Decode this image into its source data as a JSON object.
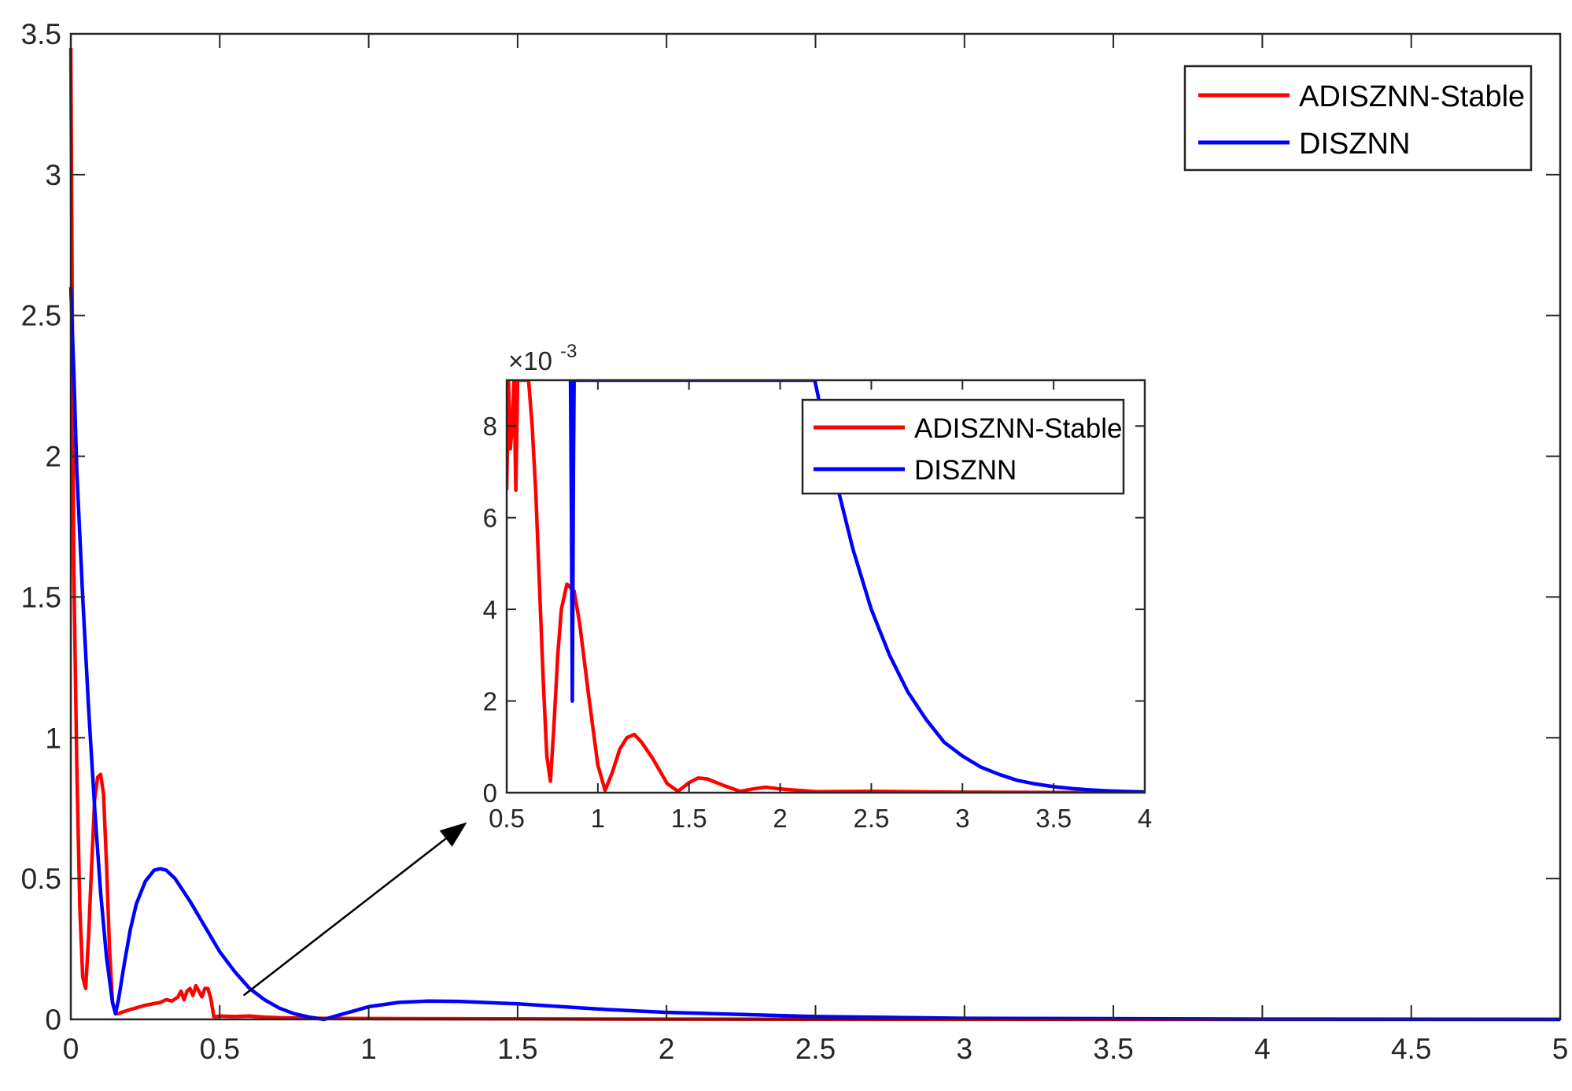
{
  "chart_data": [
    {
      "id": "main",
      "type": "line",
      "title": "",
      "xlabel": "",
      "ylabel": "",
      "xlim": [
        0,
        5
      ],
      "ylim": [
        0,
        3.5
      ],
      "x_ticks": [
        0,
        0.5,
        1,
        1.5,
        2,
        2.5,
        3,
        3.5,
        4,
        4.5,
        5
      ],
      "x_tick_labels": [
        "0",
        "0.5",
        "1",
        "1.5",
        "2",
        "2.5",
        "3",
        "3.5",
        "4",
        "4.5",
        "5"
      ],
      "y_ticks": [
        0,
        0.5,
        1,
        1.5,
        2,
        2.5,
        3,
        3.5
      ],
      "y_tick_labels": [
        "0",
        "0.5",
        "1",
        "1.5",
        "2",
        "2.5",
        "3",
        "3.5"
      ],
      "grid": false,
      "legend_position": "top-right",
      "series": [
        {
          "name": "ADISZNN-Stable",
          "color": "#ff0000",
          "x": [
            0,
            0.005,
            0.01,
            0.02,
            0.03,
            0.04,
            0.05,
            0.06,
            0.07,
            0.08,
            0.09,
            0.1,
            0.11,
            0.12,
            0.13,
            0.14,
            0.15,
            0.16,
            0.17,
            0.2,
            0.25,
            0.3,
            0.32,
            0.34,
            0.36,
            0.37,
            0.38,
            0.39,
            0.4,
            0.41,
            0.42,
            0.43,
            0.44,
            0.45,
            0.46,
            0.47,
            0.48,
            0.49,
            0.5,
            0.55,
            0.6,
            0.65,
            0.7,
            0.8,
            1.0,
            1.5,
            2.0,
            2.5,
            3.0,
            4.0,
            5.0
          ],
          "y": [
            3.45,
            2.5,
            1.6,
            0.9,
            0.4,
            0.15,
            0.11,
            0.3,
            0.55,
            0.78,
            0.86,
            0.87,
            0.8,
            0.55,
            0.25,
            0.06,
            0.02,
            0.02,
            0.025,
            0.035,
            0.05,
            0.06,
            0.07,
            0.065,
            0.08,
            0.1,
            0.07,
            0.1,
            0.11,
            0.085,
            0.12,
            0.1,
            0.08,
            0.11,
            0.11,
            0.075,
            0.01,
            0.01,
            0.012,
            0.01,
            0.012,
            0.008,
            0.006,
            0.004,
            0.003,
            0.002,
            0.001,
            0.0005,
            0.0002,
            0.0001,
            0.0
          ]
        },
        {
          "name": "DISZNN",
          "color": "#0000ff",
          "x": [
            0,
            0.01,
            0.02,
            0.04,
            0.06,
            0.08,
            0.1,
            0.12,
            0.14,
            0.15,
            0.16,
            0.18,
            0.2,
            0.22,
            0.25,
            0.28,
            0.3,
            0.32,
            0.35,
            0.4,
            0.45,
            0.5,
            0.55,
            0.6,
            0.65,
            0.7,
            0.75,
            0.8,
            0.85,
            0.9,
            0.95,
            1.0,
            1.1,
            1.2,
            1.3,
            1.5,
            1.8,
            2.0,
            2.5,
            3.0,
            4.0,
            5.0
          ],
          "y": [
            2.6,
            2.3,
            1.95,
            1.5,
            1.1,
            0.75,
            0.45,
            0.22,
            0.06,
            0.02,
            0.07,
            0.2,
            0.32,
            0.41,
            0.49,
            0.53,
            0.535,
            0.53,
            0.5,
            0.42,
            0.33,
            0.24,
            0.17,
            0.11,
            0.07,
            0.04,
            0.02,
            0.008,
            0.0,
            0.015,
            0.03,
            0.045,
            0.06,
            0.065,
            0.064,
            0.055,
            0.035,
            0.025,
            0.01,
            0.004,
            0.001,
            0.0
          ]
        }
      ],
      "annotations": [
        {
          "type": "arrow",
          "from": [
            0.58,
            0.085
          ],
          "to": [
            1.33,
            0.7
          ]
        }
      ]
    },
    {
      "id": "inset",
      "type": "line",
      "title": "",
      "xlim": [
        0.5,
        4
      ],
      "ylim": [
        0,
        9
      ],
      "y_scale_label": "×10",
      "y_scale_exponent": "-3",
      "x_ticks": [
        0.5,
        1,
        1.5,
        2,
        2.5,
        3,
        3.5,
        4
      ],
      "x_tick_labels": [
        "0.5",
        "1",
        "1.5",
        "2",
        "2.5",
        "3",
        "3.5",
        "4"
      ],
      "y_ticks": [
        0,
        2,
        4,
        6,
        8
      ],
      "y_tick_labels": [
        "0",
        "2",
        "4",
        "6",
        "8"
      ],
      "grid": false,
      "legend_position": "top-right",
      "series": [
        {
          "name": "ADISZNN-Stable",
          "color": "#ff0000",
          "x": [
            0.5,
            0.51,
            0.52,
            0.53,
            0.54,
            0.55,
            0.56,
            0.57,
            0.58,
            0.59,
            0.6,
            0.61,
            0.62,
            0.64,
            0.66,
            0.68,
            0.7,
            0.72,
            0.74,
            0.76,
            0.78,
            0.8,
            0.83,
            0.87,
            0.9,
            0.95,
            1.0,
            1.04,
            1.08,
            1.12,
            1.16,
            1.2,
            1.24,
            1.3,
            1.38,
            1.44,
            1.5,
            1.55,
            1.6,
            1.7,
            1.78,
            1.85,
            1.92,
            2.0,
            2.2,
            2.5,
            3.0,
            3.5,
            4.0
          ],
          "y": [
            6.6,
            9.0,
            7.5,
            8.0,
            9.0,
            6.6,
            9.0,
            9.0,
            9.0,
            9.0,
            9.0,
            9.0,
            9.0,
            8.0,
            6.5,
            4.5,
            2.5,
            0.8,
            0.25,
            1.5,
            3.0,
            4.0,
            4.55,
            4.4,
            3.7,
            2.1,
            0.6,
            0.05,
            0.45,
            0.95,
            1.2,
            1.27,
            1.1,
            0.75,
            0.2,
            0.03,
            0.22,
            0.32,
            0.3,
            0.14,
            0.03,
            0.08,
            0.12,
            0.08,
            0.02,
            0.03,
            0.01,
            0.005,
            0.0
          ]
        },
        {
          "name": "DISZNN",
          "color": "#0000ff",
          "x": [
            0.85,
            0.855,
            0.86,
            0.863,
            0.866,
            0.87,
            0.875,
            0.88,
            2.19,
            2.3,
            2.4,
            2.5,
            2.6,
            2.7,
            2.8,
            2.9,
            3.0,
            3.1,
            3.2,
            3.3,
            3.4,
            3.5,
            3.6,
            3.7,
            3.8,
            3.9,
            4.0
          ],
          "y": [
            9.0,
            6.0,
            2.0,
            4.2,
            7.0,
            9.0,
            9.0,
            9.0,
            9.0,
            6.9,
            5.3,
            4.0,
            3.0,
            2.2,
            1.6,
            1.1,
            0.8,
            0.56,
            0.4,
            0.27,
            0.19,
            0.13,
            0.09,
            0.06,
            0.04,
            0.025,
            0.015
          ]
        }
      ]
    }
  ]
}
